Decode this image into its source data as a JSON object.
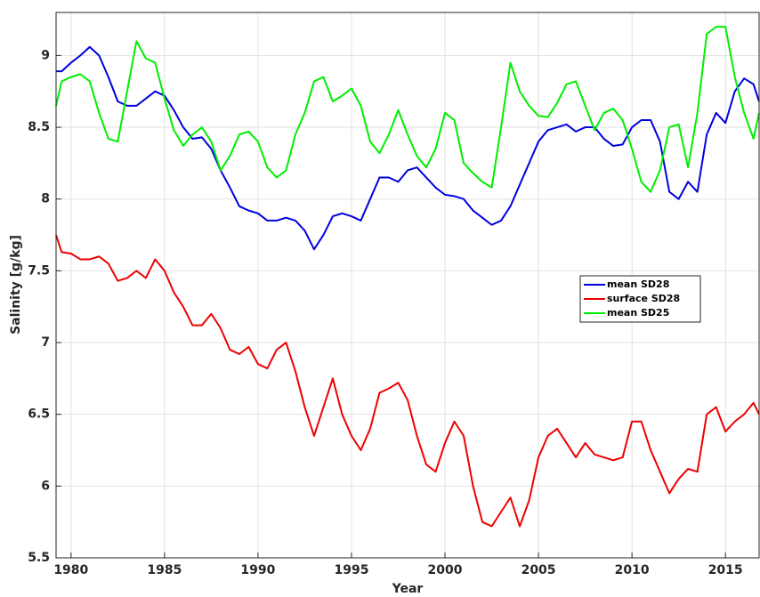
{
  "chart_data": {
    "type": "line",
    "xlabel": "Year",
    "ylabel": "Salinity [g/kg]",
    "x": [
      1979.2,
      1979.5,
      1980,
      1980.5,
      1981,
      1981.5,
      1982,
      1982.5,
      1983,
      1983.5,
      1984,
      1984.5,
      1985,
      1985.5,
      1986,
      1986.5,
      1987,
      1987.5,
      1988,
      1988.5,
      1989,
      1989.5,
      1990,
      1990.5,
      1991,
      1991.5,
      1992,
      1992.5,
      1993,
      1993.5,
      1994,
      1994.5,
      1995,
      1995.5,
      1996,
      1996.5,
      1997,
      1997.5,
      1998,
      1998.5,
      1999,
      1999.5,
      2000,
      2000.5,
      2001,
      2001.5,
      2002,
      2002.5,
      2003,
      2003.5,
      2004,
      2004.5,
      2005,
      2005.5,
      2006,
      2006.5,
      2007,
      2007.5,
      2008,
      2008.5,
      2009,
      2009.5,
      2010,
      2010.5,
      2011,
      2011.5,
      2012,
      2012.5,
      2013,
      2013.5,
      2014,
      2014.5,
      2015,
      2015.5,
      2016,
      2016.5,
      2016.8
    ],
    "series": [
      {
        "name": "mean SD28",
        "color": "#0000e0",
        "values": [
          8.89,
          8.89,
          8.95,
          9.0,
          9.06,
          9.0,
          8.85,
          8.68,
          8.65,
          8.65,
          8.7,
          8.75,
          8.72,
          8.62,
          8.5,
          8.42,
          8.43,
          8.35,
          8.2,
          8.08,
          7.95,
          7.92,
          7.9,
          7.85,
          7.85,
          7.87,
          7.85,
          7.78,
          7.65,
          7.75,
          7.88,
          7.9,
          7.88,
          7.85,
          8.0,
          8.15,
          8.15,
          8.12,
          8.2,
          8.22,
          8.15,
          8.08,
          8.03,
          8.02,
          8.0,
          7.92,
          7.87,
          7.82,
          7.85,
          7.95,
          8.1,
          8.25,
          8.4,
          8.48,
          8.5,
          8.52,
          8.47,
          8.5,
          8.5,
          8.42,
          8.37,
          8.38,
          8.5,
          8.55,
          8.55,
          8.4,
          8.05,
          8.0,
          8.12,
          8.05,
          8.45,
          8.6,
          8.53,
          8.75,
          8.84,
          8.8,
          8.68
        ]
      },
      {
        "name": "surface SD28",
        "color": "#ee0000",
        "values": [
          7.75,
          7.63,
          7.62,
          7.58,
          7.58,
          7.6,
          7.55,
          7.43,
          7.45,
          7.5,
          7.45,
          7.58,
          7.5,
          7.35,
          7.25,
          7.12,
          7.12,
          7.2,
          7.1,
          6.95,
          6.92,
          6.97,
          6.85,
          6.82,
          6.95,
          7.0,
          6.8,
          6.55,
          6.35,
          6.55,
          6.75,
          6.5,
          6.35,
          6.25,
          6.4,
          6.65,
          6.68,
          6.72,
          6.6,
          6.35,
          6.15,
          6.1,
          6.3,
          6.45,
          6.35,
          6.0,
          5.75,
          5.72,
          5.82,
          5.92,
          5.72,
          5.9,
          6.2,
          6.35,
          6.4,
          6.3,
          6.2,
          6.3,
          6.22,
          6.2,
          6.18,
          6.2,
          6.45,
          6.45,
          6.25,
          6.1,
          5.95,
          6.05,
          6.12,
          6.1,
          6.5,
          6.55,
          6.38,
          6.45,
          6.5,
          6.58,
          6.5
        ]
      },
      {
        "name": "mean SD25",
        "color": "#00ee00",
        "values": [
          8.65,
          8.82,
          8.85,
          8.87,
          8.82,
          8.6,
          8.42,
          8.4,
          8.75,
          9.1,
          8.98,
          8.95,
          8.7,
          8.48,
          8.37,
          8.45,
          8.5,
          8.4,
          8.2,
          8.3,
          8.45,
          8.47,
          8.4,
          8.22,
          8.15,
          8.2,
          8.45,
          8.6,
          8.82,
          8.85,
          8.68,
          8.72,
          8.77,
          8.65,
          8.4,
          8.32,
          8.45,
          8.62,
          8.45,
          8.3,
          8.22,
          8.35,
          8.6,
          8.55,
          8.25,
          8.18,
          8.12,
          8.08,
          8.5,
          8.95,
          8.75,
          8.65,
          8.58,
          8.57,
          8.67,
          8.8,
          8.82,
          8.65,
          8.48,
          8.6,
          8.63,
          8.55,
          8.35,
          8.12,
          8.05,
          8.2,
          8.5,
          8.52,
          8.22,
          8.6,
          9.15,
          9.2,
          9.2,
          8.85,
          8.6,
          8.42,
          8.6
        ]
      }
    ],
    "xlim": [
      1979.2,
      2016.8
    ],
    "xticks": [
      1980,
      1985,
      1990,
      1995,
      2000,
      2005,
      2010,
      2015
    ],
    "ylim": [
      5.5,
      9.3
    ],
    "yticks": [
      5.5,
      6,
      6.5,
      7,
      7.5,
      8,
      8.5,
      9
    ],
    "grid": true,
    "legend_position": "right"
  }
}
